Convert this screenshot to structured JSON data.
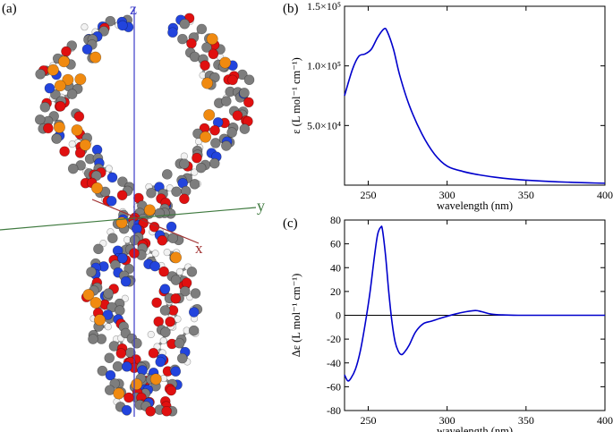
{
  "panels": {
    "a": "(a)",
    "b": "(b)",
    "c": "(c)"
  },
  "axes_labels": {
    "x": "x",
    "y": "y",
    "z": "z"
  },
  "colors": {
    "series": "#0000cc",
    "carbon": "#7d7d7d",
    "oxygen": "#e01010",
    "nitrogen": "#2244dd",
    "phosphorus": "#f08a10",
    "hydrogen": "#f2f2f2"
  },
  "chart_data": [
    {
      "type": "line",
      "panel": "b",
      "title": "",
      "xlabel": "wavelength (nm)",
      "ylabel": "ε (L mol⁻¹ cm⁻¹)",
      "xlim": [
        235,
        400
      ],
      "ylim": [
        0,
        150000
      ],
      "xticks": [
        250,
        300,
        350,
        400
      ],
      "yticks": [
        {
          "value": 50000,
          "label": "5.0×10⁴"
        },
        {
          "value": 100000,
          "label": "1.0×10⁵"
        },
        {
          "value": 150000,
          "label": "1.5×10⁵"
        }
      ],
      "series": [
        {
          "x": [
            235,
            240,
            244,
            248,
            252,
            256,
            260,
            262,
            266,
            270,
            276,
            284,
            292,
            300,
            310,
            320,
            330,
            340,
            350,
            360,
            370,
            380,
            390,
            400
          ],
          "y": [
            75000,
            97000,
            108000,
            110000,
            114000,
            124000,
            131000,
            129000,
            114000,
            92000,
            67000,
            43000,
            26000,
            16000,
            11500,
            8700,
            6700,
            5200,
            4200,
            3400,
            2800,
            2300,
            1900,
            1600
          ]
        }
      ]
    },
    {
      "type": "line",
      "panel": "c",
      "title": "",
      "xlabel": "wavelength (nm)",
      "ylabel": "Δε (L mol⁻¹ cm⁻¹)",
      "xlim": [
        235,
        400
      ],
      "ylim": [
        -80,
        80
      ],
      "xticks": [
        250,
        300,
        350,
        400
      ],
      "yticks": [
        -80,
        -60,
        -40,
        -20,
        0,
        20,
        40,
        60,
        80
      ],
      "zero_line": true,
      "series": [
        {
          "x": [
            235,
            237,
            239,
            242,
            245,
            248,
            251,
            254,
            256,
            258,
            259,
            261,
            263,
            265,
            267,
            269,
            271,
            273,
            276,
            280,
            285,
            290,
            297,
            305,
            312,
            318,
            322,
            328,
            335,
            345,
            360,
            380,
            400
          ],
          "y": [
            -50,
            -55,
            -53,
            -45,
            -30,
            -8,
            18,
            50,
            68,
            74,
            72,
            50,
            20,
            -5,
            -22,
            -30,
            -33,
            -31,
            -25,
            -14,
            -7,
            -5,
            -2,
            1,
            3,
            4,
            3,
            1,
            0.3,
            0,
            0,
            0,
            0
          ]
        }
      ]
    }
  ]
}
